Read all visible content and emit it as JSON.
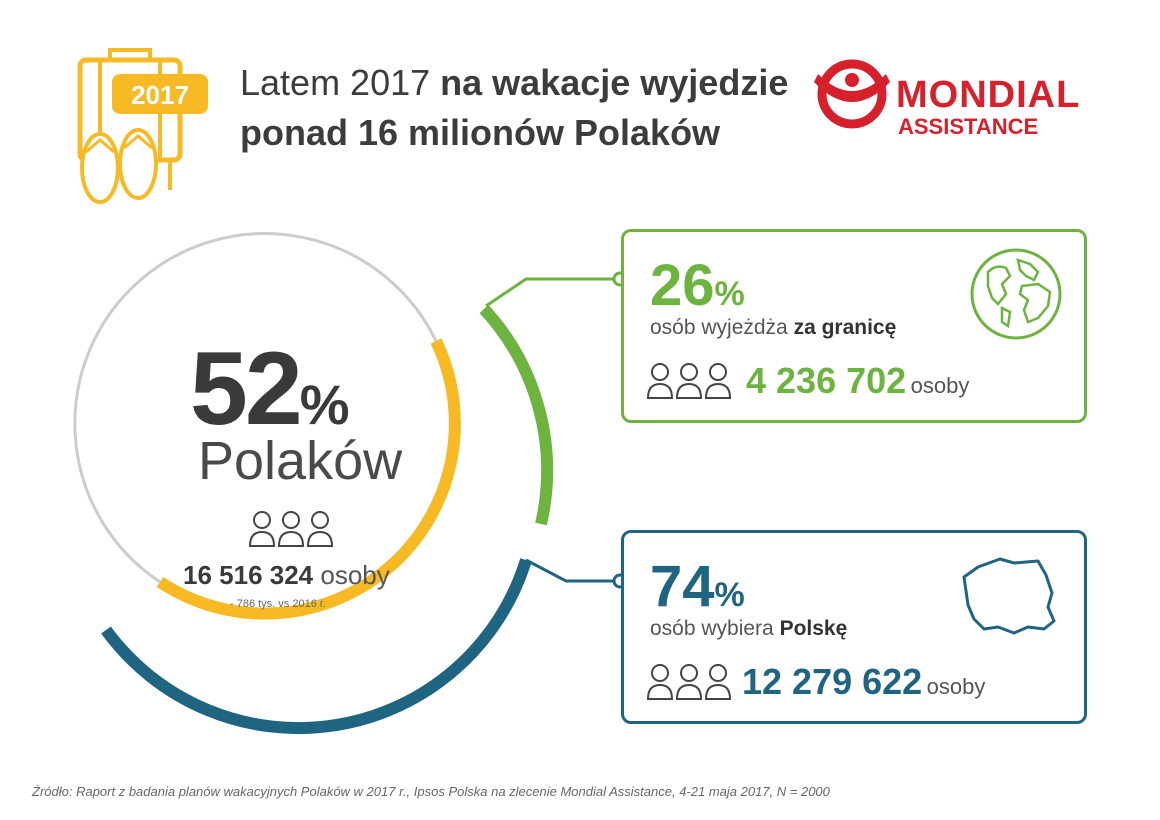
{
  "header": {
    "year_badge": "2017",
    "title_regular": "Latem 2017 ",
    "title_bold": "na wakacje wyjedzie ponad 16 milionów Polaków"
  },
  "logo": {
    "word1": "MONDIAL",
    "word2": "ASSISTANCE"
  },
  "colors": {
    "yellow": "#f7b924",
    "green": "#6db33f",
    "teal": "#1f6582",
    "red": "#d6202b"
  },
  "main": {
    "percent_value": "52",
    "percent_sign": "%",
    "label": "Polaków",
    "count": "16 516 324",
    "count_unit": "osoby",
    "delta": "- 786 tys. vs 2016 r."
  },
  "cards": {
    "abroad": {
      "percent_value": "26",
      "percent_sign": "%",
      "desc_regular": "osób wyjeżdża ",
      "desc_bold": "za granicę",
      "count": "4 236 702",
      "count_unit": "osoby",
      "icon": "globe-icon"
    },
    "poland": {
      "percent_value": "74",
      "percent_sign": "%",
      "desc_regular": "osób wybiera ",
      "desc_bold": "Polskę",
      "count": "12 279 622",
      "count_unit": "osoby",
      "icon": "poland-map-icon"
    }
  },
  "footer": {
    "source": "Źródło: Raport z badania planów wakacyjnych Polaków w 2017 r., Ipsos Polska na zlecenie Mondial Assistance, 4-21 maja 2017, N = 2000"
  }
}
